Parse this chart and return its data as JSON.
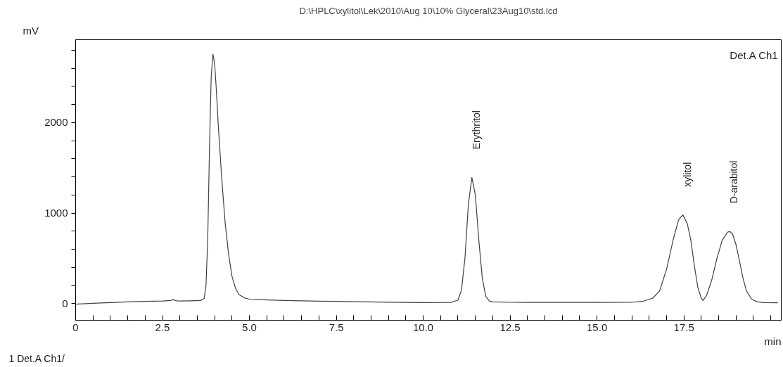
{
  "chart_data": {
    "type": "line",
    "title": "D:\\HPLC\\xylitol\\Lek\\2010\\Aug 10\\10% Glyceral\\23Aug10\\std.lcd",
    "xlabel": "min",
    "ylabel": "mV",
    "x": [
      0,
      0.5,
      1,
      1.5,
      2,
      2.5,
      2.75,
      2.8,
      2.9,
      3.0,
      3.3,
      3.6,
      3.7,
      3.75,
      3.8,
      3.85,
      3.9,
      3.95,
      4.0,
      4.05,
      4.1,
      4.2,
      4.3,
      4.4,
      4.5,
      4.6,
      4.7,
      4.85,
      5.0,
      5.5,
      6.0,
      6.5,
      7.0,
      7.5,
      8.0,
      9.0,
      10.0,
      10.8,
      11.0,
      11.1,
      11.2,
      11.3,
      11.4,
      11.5,
      11.6,
      11.7,
      11.8,
      11.9,
      12.0,
      12.5,
      13.0,
      14.0,
      15.0,
      16.0,
      16.3,
      16.6,
      16.8,
      17.0,
      17.2,
      17.35,
      17.47,
      17.6,
      17.7,
      17.8,
      17.9,
      18.0,
      18.05,
      18.15,
      18.3,
      18.45,
      18.6,
      18.75,
      18.82,
      18.9,
      19.0,
      19.1,
      19.2,
      19.3,
      19.45,
      19.6,
      19.8,
      20.2
    ],
    "series": [
      {
        "color": "#404040",
        "values": [
          -5,
          5,
          12,
          20,
          26,
          30,
          36,
          45,
          32,
          30,
          32,
          35,
          60,
          200,
          700,
          1700,
          2500,
          2757,
          2650,
          2350,
          2000,
          1400,
          900,
          550,
          300,
          170,
          100,
          65,
          50,
          42,
          36,
          32,
          28,
          25,
          22,
          16,
          12,
          14,
          40,
          150,
          500,
          1100,
          1394,
          1200,
          700,
          280,
          80,
          30,
          20,
          15,
          14,
          14,
          14,
          15,
          25,
          60,
          140,
          380,
          720,
          930,
          980,
          880,
          700,
          420,
          180,
          60,
          35,
          90,
          260,
          500,
          700,
          790,
          797,
          770,
          650,
          470,
          280,
          140,
          50,
          22,
          12,
          10
        ]
      }
    ],
    "xlim": [
      0,
      20.3
    ],
    "ylim": [
      -183,
      2916
    ],
    "xticks": [
      0,
      {
        "value": 0.5,
        "label": null
      },
      {
        "value": 1,
        "label": null
      },
      {
        "value": 1.5,
        "label": null
      },
      {
        "value": 2,
        "label": null
      },
      {
        "value": 2.5,
        "label": "2.5"
      },
      {
        "value": 3,
        "label": null
      },
      {
        "value": 3.5,
        "label": null
      },
      {
        "value": 4,
        "label": null
      },
      {
        "value": 4.5,
        "label": null
      },
      {
        "value": 5,
        "label": "5.0"
      },
      {
        "value": 5.5,
        "label": null
      },
      {
        "value": 6,
        "label": null
      },
      {
        "value": 6.5,
        "label": null
      },
      {
        "value": 7,
        "label": null
      },
      {
        "value": 7.5,
        "label": "7.5"
      },
      {
        "value": 8,
        "label": null
      },
      {
        "value": 8.5,
        "label": null
      },
      {
        "value": 9,
        "label": null
      },
      {
        "value": 9.5,
        "label": null
      },
      {
        "value": 10,
        "label": "10.0"
      },
      {
        "value": 10.5,
        "label": null
      },
      {
        "value": 11,
        "label": null
      },
      {
        "value": 11.5,
        "label": null
      },
      {
        "value": 12,
        "label": null
      },
      {
        "value": 12.5,
        "label": "12.5"
      },
      {
        "value": 13,
        "label": null
      },
      {
        "value": 13.5,
        "label": null
      },
      {
        "value": 14,
        "label": null
      },
      {
        "value": 14.5,
        "label": null
      },
      {
        "value": 15,
        "label": "15.0"
      },
      {
        "value": 15.5,
        "label": null
      },
      {
        "value": 16,
        "label": null
      },
      {
        "value": 16.5,
        "label": null
      },
      {
        "value": 17,
        "label": null
      },
      {
        "value": 17.5,
        "label": "17.5"
      },
      {
        "value": 18,
        "label": null
      },
      {
        "value": 18.5,
        "label": null
      },
      {
        "value": 19,
        "label": null
      },
      {
        "value": 19.5,
        "label": null
      },
      {
        "value": 20,
        "label": null
      }
    ],
    "yticks": [
      0,
      {
        "value": 200,
        "label": null
      },
      {
        "value": 400,
        "label": null
      },
      {
        "value": 600,
        "label": null
      },
      {
        "value": 800,
        "label": null
      },
      1000,
      {
        "value": 1200,
        "label": null
      },
      {
        "value": 1400,
        "label": null
      },
      {
        "value": 1600,
        "label": null
      },
      {
        "value": 1800,
        "label": null
      },
      2000,
      {
        "value": 2200,
        "label": null
      },
      {
        "value": 2400,
        "label": null
      },
      {
        "value": 2600,
        "label": null
      },
      {
        "value": 2800,
        "label": null
      }
    ],
    "annotations": [
      {
        "text": "Erythritol",
        "x": 11.4,
        "y": 1394
      },
      {
        "text": "xylitol",
        "x": 17.47,
        "y": 980
      },
      {
        "text": "D-arabitol",
        "x": 18.82,
        "y": 797
      },
      "Det.A Ch1",
      "1 Det.A Ch1/"
    ],
    "grid": false,
    "marker": "none",
    "line_style": "solid"
  }
}
